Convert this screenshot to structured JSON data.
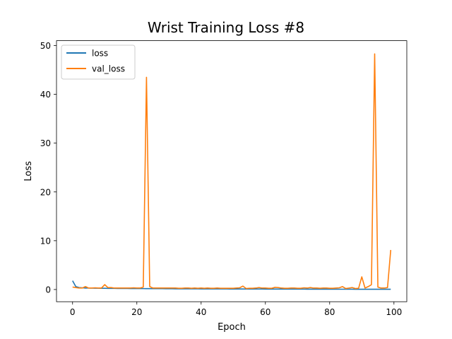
{
  "chart_data": {
    "type": "line",
    "title": "Wrist Training Loss #8",
    "xlabel": "Epoch",
    "ylabel": "Loss",
    "xlim": [
      -5,
      104
    ],
    "ylim": [
      -2.5,
      51
    ],
    "xticks": [
      0,
      20,
      40,
      60,
      80,
      100
    ],
    "yticks": [
      0,
      10,
      20,
      30,
      40,
      50
    ],
    "grid": false,
    "legend": "top-left",
    "series": [
      {
        "name": "loss",
        "color": "#1f77b4",
        "x": [
          0,
          1,
          2,
          3,
          4,
          5,
          6,
          7,
          8,
          9,
          10,
          11,
          12,
          13,
          14,
          15,
          16,
          17,
          18,
          19,
          20,
          21,
          22,
          23,
          24,
          25,
          26,
          27,
          28,
          29,
          30,
          31,
          32,
          33,
          34,
          35,
          36,
          37,
          38,
          39,
          40,
          41,
          42,
          43,
          44,
          45,
          46,
          47,
          48,
          49,
          50,
          51,
          52,
          53,
          54,
          55,
          56,
          57,
          58,
          59,
          60,
          61,
          62,
          63,
          64,
          65,
          66,
          67,
          68,
          69,
          70,
          71,
          72,
          73,
          74,
          75,
          76,
          77,
          78,
          79,
          80,
          81,
          82,
          83,
          84,
          85,
          86,
          87,
          88,
          89,
          90,
          91,
          92,
          93,
          94,
          95,
          96,
          97,
          98,
          99
        ],
        "values": [
          1.8,
          0.6,
          0.4,
          0.35,
          0.3,
          0.3,
          0.28,
          0.27,
          0.26,
          0.25,
          0.25,
          0.24,
          0.23,
          0.23,
          0.22,
          0.22,
          0.21,
          0.21,
          0.2,
          0.2,
          0.2,
          0.19,
          0.19,
          0.18,
          0.18,
          0.18,
          0.17,
          0.17,
          0.17,
          0.16,
          0.16,
          0.16,
          0.15,
          0.15,
          0.15,
          0.15,
          0.14,
          0.14,
          0.14,
          0.14,
          0.13,
          0.13,
          0.13,
          0.13,
          0.12,
          0.12,
          0.12,
          0.12,
          0.12,
          0.11,
          0.11,
          0.11,
          0.11,
          0.11,
          0.1,
          0.1,
          0.1,
          0.1,
          0.1,
          0.1,
          0.09,
          0.09,
          0.09,
          0.09,
          0.09,
          0.09,
          0.08,
          0.08,
          0.08,
          0.08,
          0.08,
          0.08,
          0.08,
          0.07,
          0.07,
          0.07,
          0.07,
          0.07,
          0.07,
          0.07,
          0.06,
          0.06,
          0.06,
          0.06,
          0.06,
          0.06,
          0.06,
          0.06,
          0.05,
          0.05,
          0.05,
          0.05,
          0.05,
          0.05,
          0.05,
          0.05,
          0.05,
          0.05,
          0.05,
          0.05
        ]
      },
      {
        "name": "val_loss",
        "color": "#ff7f0e",
        "x": [
          0,
          1,
          2,
          3,
          4,
          5,
          6,
          7,
          8,
          9,
          10,
          11,
          12,
          13,
          14,
          15,
          16,
          17,
          18,
          19,
          20,
          21,
          22,
          23,
          24,
          25,
          26,
          27,
          28,
          29,
          30,
          31,
          32,
          33,
          34,
          35,
          36,
          37,
          38,
          39,
          40,
          41,
          42,
          43,
          44,
          45,
          46,
          47,
          48,
          49,
          50,
          51,
          52,
          53,
          54,
          55,
          56,
          57,
          58,
          59,
          60,
          61,
          62,
          63,
          64,
          65,
          66,
          67,
          68,
          69,
          70,
          71,
          72,
          73,
          74,
          75,
          76,
          77,
          78,
          79,
          80,
          81,
          82,
          83,
          84,
          85,
          86,
          87,
          88,
          89,
          90,
          91,
          92,
          93,
          94,
          95,
          96,
          97,
          98,
          99
        ],
        "values": [
          0.5,
          0.4,
          0.3,
          0.3,
          0.6,
          0.3,
          0.3,
          0.35,
          0.3,
          0.3,
          1.0,
          0.4,
          0.4,
          0.3,
          0.3,
          0.3,
          0.3,
          0.3,
          0.3,
          0.35,
          0.3,
          0.3,
          0.5,
          43.5,
          0.6,
          0.3,
          0.3,
          0.3,
          0.3,
          0.3,
          0.3,
          0.3,
          0.3,
          0.25,
          0.25,
          0.3,
          0.3,
          0.25,
          0.3,
          0.25,
          0.3,
          0.25,
          0.3,
          0.25,
          0.25,
          0.3,
          0.25,
          0.25,
          0.25,
          0.25,
          0.25,
          0.3,
          0.35,
          0.7,
          0.2,
          0.25,
          0.25,
          0.3,
          0.4,
          0.3,
          0.3,
          0.25,
          0.25,
          0.45,
          0.4,
          0.3,
          0.25,
          0.25,
          0.3,
          0.3,
          0.25,
          0.25,
          0.35,
          0.3,
          0.4,
          0.3,
          0.3,
          0.25,
          0.3,
          0.3,
          0.25,
          0.25,
          0.3,
          0.35,
          0.6,
          0.2,
          0.3,
          0.4,
          0.2,
          0.25,
          2.6,
          0.3,
          0.6,
          1.0,
          48.3,
          0.5,
          0.3,
          0.3,
          0.4,
          8.1
        ]
      }
    ]
  }
}
